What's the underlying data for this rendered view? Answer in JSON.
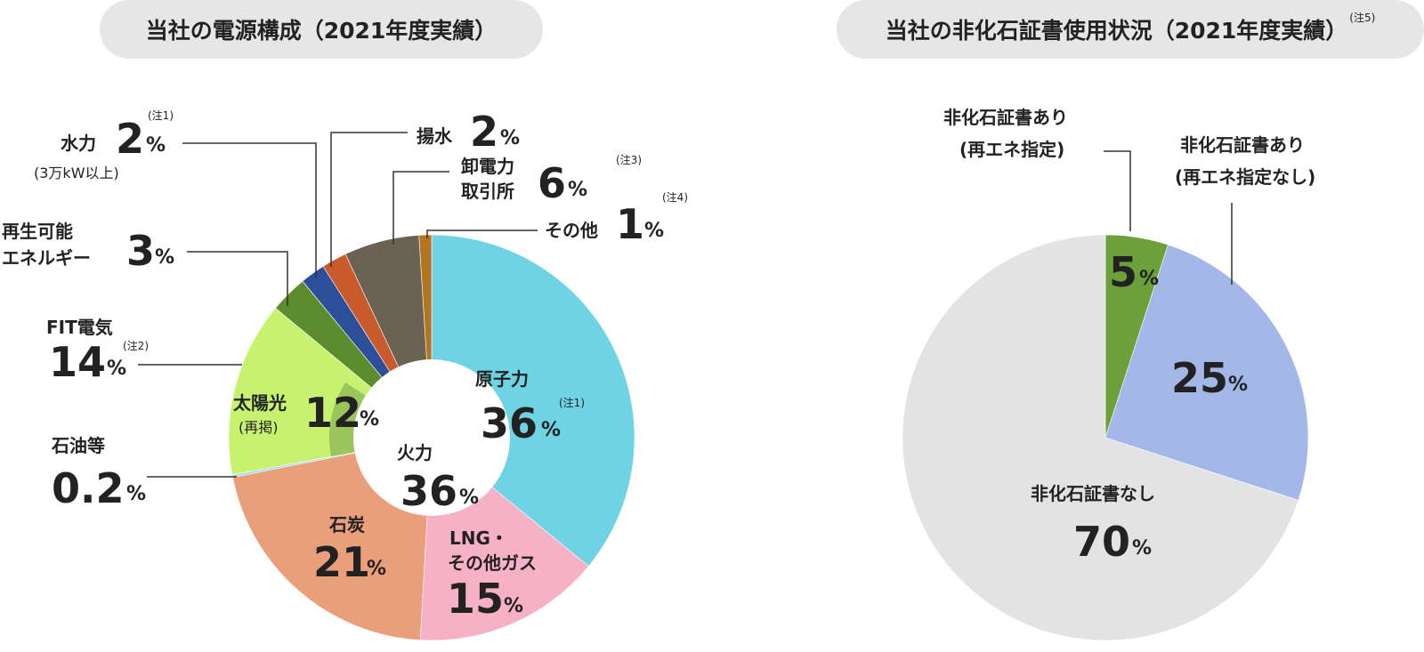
{
  "titles": {
    "left": "当社の電源構成（2021年度実績）",
    "right": "当社の非化石証書使用状況（2021年度実績）",
    "right_note": "(注5)"
  },
  "chart_data": [
    {
      "type": "pie",
      "title": "当社の電源構成（2021年度実績）",
      "slices": [
        {
          "label": "原子力",
          "value": 36,
          "color": "#6fd3e3",
          "note": "(注1)"
        },
        {
          "label": "LNG・その他ガス",
          "value": 15,
          "color": "#f7b1c6"
        },
        {
          "label": "石炭",
          "value": 21,
          "color": "#e99f7a"
        },
        {
          "label": "石油等",
          "value": 0.2,
          "color": "#9fdde8"
        },
        {
          "label": "FIT電気",
          "value": 14,
          "color": "#c6f26f",
          "note": "(注2)"
        },
        {
          "label": "再生可能エネルギー",
          "value": 3,
          "color": "#5b8c2d"
        },
        {
          "label": "水力",
          "value": 2,
          "color": "#2d4f9a",
          "note": "(注1)",
          "sublabel": "(3万kW以上)"
        },
        {
          "label": "揚水",
          "value": 2,
          "color": "#c85a2b"
        },
        {
          "label": "卸電力取引所",
          "value": 6,
          "color": "#6b6254",
          "note": "(注3)"
        },
        {
          "label": "その他",
          "value": 1,
          "color": "#b5741f",
          "note": "(注4)"
        }
      ],
      "inner_group": {
        "label": "火力",
        "value": 36
      },
      "fit_subset": {
        "label": "太陽光",
        "sublabel": "(再掲)",
        "value": 12,
        "color": "#9ac55a"
      },
      "unit": "%"
    },
    {
      "type": "pie",
      "title": "当社の非化石証書使用状況（2021年度実績）",
      "slices": [
        {
          "label": "非化石証書あり（再エネ指定）",
          "value": 5,
          "color": "#6ba03a"
        },
        {
          "label": "非化石証書あり（再エネ指定なし）",
          "value": 25,
          "color": "#a3b8e8"
        },
        {
          "label": "非化石証書なし",
          "value": 70,
          "color": "#e3e3e3"
        }
      ],
      "unit": "%"
    }
  ],
  "labels": {
    "nuclear": "原子力",
    "nuclear_val": "36",
    "note1": "(注1)",
    "thermal": "火力",
    "thermal_val": "36",
    "lng1": "LNG・",
    "lng2": "その他ガス",
    "lng_val": "15",
    "coal": "石炭",
    "coal_val": "21",
    "oil": "石油等",
    "oil_val": "0.2",
    "fit": "FIT電気",
    "fit_val": "14",
    "note2": "(注2)",
    "solar": "太陽光",
    "solar_sub": "(再掲)",
    "solar_val": "12",
    "renew1": "再生可能",
    "renew2": "エネルギー",
    "renew_val": "3",
    "hydro": "水力",
    "hydro_sub": "(3万kW以上)",
    "hydro_val": "2",
    "hydro_note": "(注1)",
    "pump": "揚水",
    "pump_val": "2",
    "jepx1": "卸電力",
    "jepx2": "取引所",
    "jepx_val": "6",
    "note3": "(注3)",
    "other": "その他",
    "other_val": "1",
    "note4": "(注4)",
    "pct": "%",
    "r_ren1": "非化石証書あり",
    "r_ren2": "(再エネ指定)",
    "r_ren_val": "5",
    "r_non1": "非化石証書あり",
    "r_non2": "(再エネ指定なし)",
    "r_non_val": "25",
    "r_none": "非化石証書なし",
    "r_none_val": "70"
  }
}
